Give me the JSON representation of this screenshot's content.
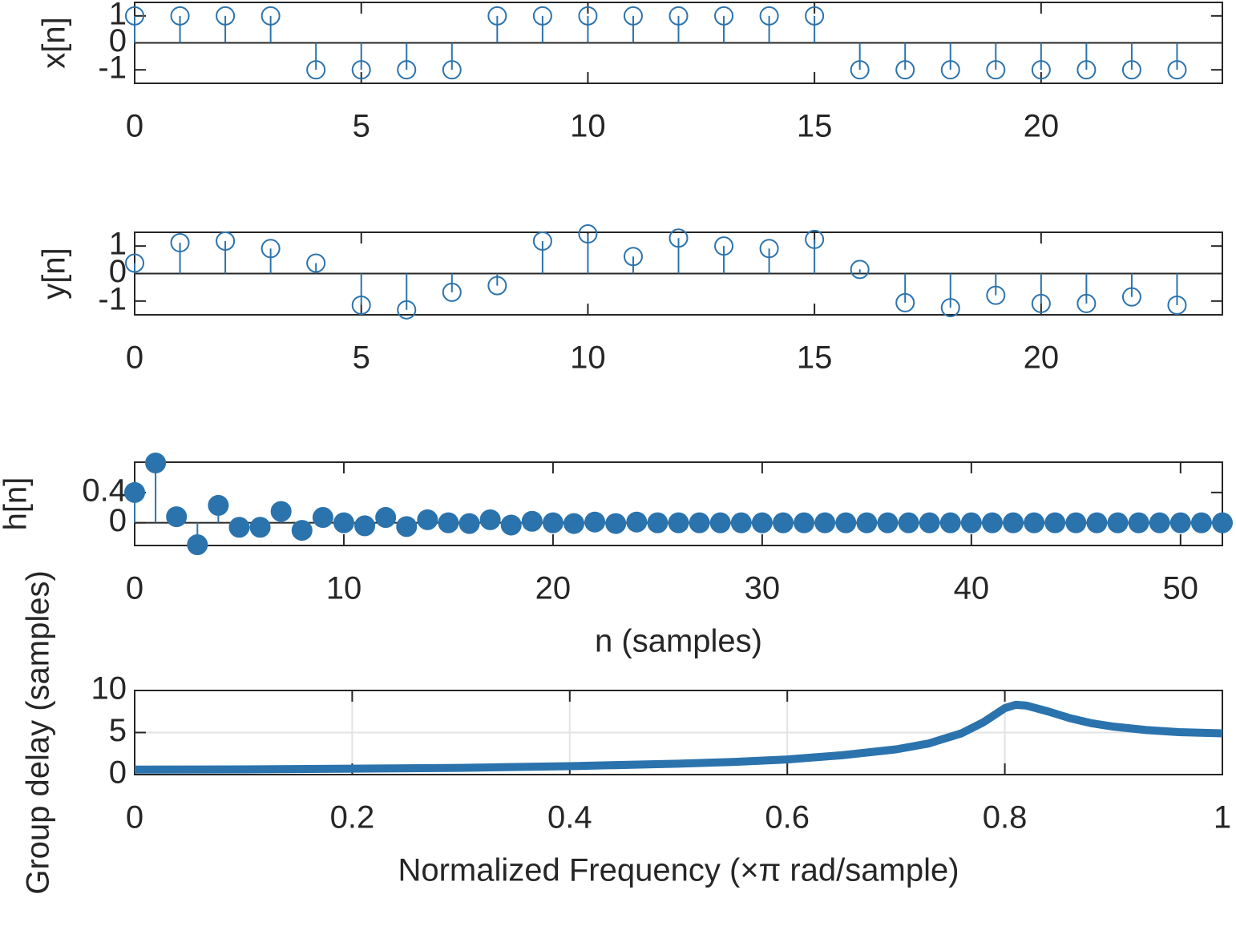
{
  "chart_data": [
    {
      "type": "stem",
      "ylabel": "x[n]",
      "color": "#2b73ad",
      "marker_filled": false,
      "x": [
        0,
        1,
        2,
        3,
        4,
        5,
        6,
        7,
        8,
        9,
        10,
        11,
        12,
        13,
        14,
        15,
        16,
        17,
        18,
        19,
        20,
        21,
        22,
        23
      ],
      "values": [
        1,
        1,
        1,
        1,
        -1,
        -1,
        -1,
        -1,
        1,
        1,
        1,
        1,
        1,
        1,
        1,
        1,
        -1,
        -1,
        -1,
        -1,
        -1,
        -1,
        -1,
        -1
      ],
      "xlim": [
        0,
        24
      ],
      "xticks": [
        0,
        5,
        10,
        15,
        20
      ],
      "ylim": [
        -1.5,
        1.5
      ],
      "yticks": [
        -1,
        0,
        1
      ]
    },
    {
      "type": "stem",
      "ylabel": "y[n]",
      "color": "#2b73ad",
      "marker_filled": false,
      "x": [
        0,
        1,
        2,
        3,
        4,
        5,
        6,
        7,
        8,
        9,
        10,
        11,
        12,
        13,
        14,
        15,
        16,
        17,
        18,
        19,
        20,
        21,
        22,
        23
      ],
      "values": [
        0.38,
        1.12,
        1.18,
        0.91,
        0.38,
        -1.15,
        -1.32,
        -0.68,
        -0.44,
        1.18,
        1.44,
        0.62,
        1.29,
        1.0,
        0.91,
        1.24,
        0.15,
        -1.06,
        -1.24,
        -0.79,
        -1.09,
        -1.09,
        -0.85,
        -1.15
      ],
      "xlim": [
        0,
        24
      ],
      "xticks": [
        0,
        5,
        10,
        15,
        20
      ],
      "ylim": [
        -1.5,
        1.5
      ],
      "yticks": [
        -1,
        0,
        1
      ]
    },
    {
      "type": "stem",
      "ylabel": "h[n]",
      "xlabel": "n (samples)",
      "color": "#2b73ad",
      "marker_filled": true,
      "x": [
        0,
        1,
        2,
        3,
        4,
        5,
        6,
        7,
        8,
        9,
        10,
        11,
        12,
        13,
        14,
        15,
        16,
        17,
        18,
        19,
        20,
        21,
        22,
        23,
        24,
        25,
        26,
        27,
        28,
        29,
        30,
        31,
        32,
        33,
        34,
        35,
        36,
        37,
        38,
        39,
        40,
        41,
        42,
        43,
        44,
        45,
        46,
        47,
        48,
        49,
        50,
        51,
        52
      ],
      "values": [
        0.4,
        0.79,
        0.08,
        -0.29,
        0.23,
        -0.06,
        -0.06,
        0.15,
        -0.1,
        0.07,
        0,
        -0.04,
        0.07,
        -0.05,
        0.04,
        0,
        -0.01,
        0.04,
        -0.03,
        0.02,
        0,
        -0.01,
        0.01,
        -0.01,
        0.01,
        0,
        0,
        0,
        0,
        0,
        0,
        0,
        0,
        0,
        0,
        0,
        0,
        0,
        0,
        0,
        0,
        0,
        0,
        0,
        0,
        0,
        0,
        0,
        0,
        0,
        0,
        0,
        0
      ],
      "xlim": [
        0,
        52
      ],
      "xticks": [
        0,
        10,
        20,
        30,
        40,
        50
      ],
      "ylim": [
        -0.3,
        0.8
      ],
      "yticks": [
        0,
        0.4
      ]
    },
    {
      "type": "line",
      "ylabel": "Group delay (samples)",
      "xlabel": "Normalized Frequency (×π rad/sample)",
      "color": "#2b73ad",
      "grid": true,
      "x": [
        0,
        0.1,
        0.2,
        0.3,
        0.4,
        0.5,
        0.55,
        0.6,
        0.65,
        0.7,
        0.73,
        0.76,
        0.78,
        0.8,
        0.81,
        0.82,
        0.84,
        0.86,
        0.88,
        0.9,
        0.93,
        0.96,
        1
      ],
      "values": [
        0.6,
        0.62,
        0.7,
        0.8,
        1.0,
        1.3,
        1.5,
        1.8,
        2.3,
        3.0,
        3.7,
        4.9,
        6.2,
        7.9,
        8.3,
        8.2,
        7.5,
        6.7,
        6.1,
        5.7,
        5.3,
        5.05,
        4.9
      ],
      "xlim": [
        0,
        1
      ],
      "xticks": [
        0,
        0.2,
        0.4,
        0.6,
        0.8,
        1
      ],
      "ylim": [
        0,
        10
      ],
      "yticks": [
        0,
        5,
        10
      ]
    }
  ]
}
